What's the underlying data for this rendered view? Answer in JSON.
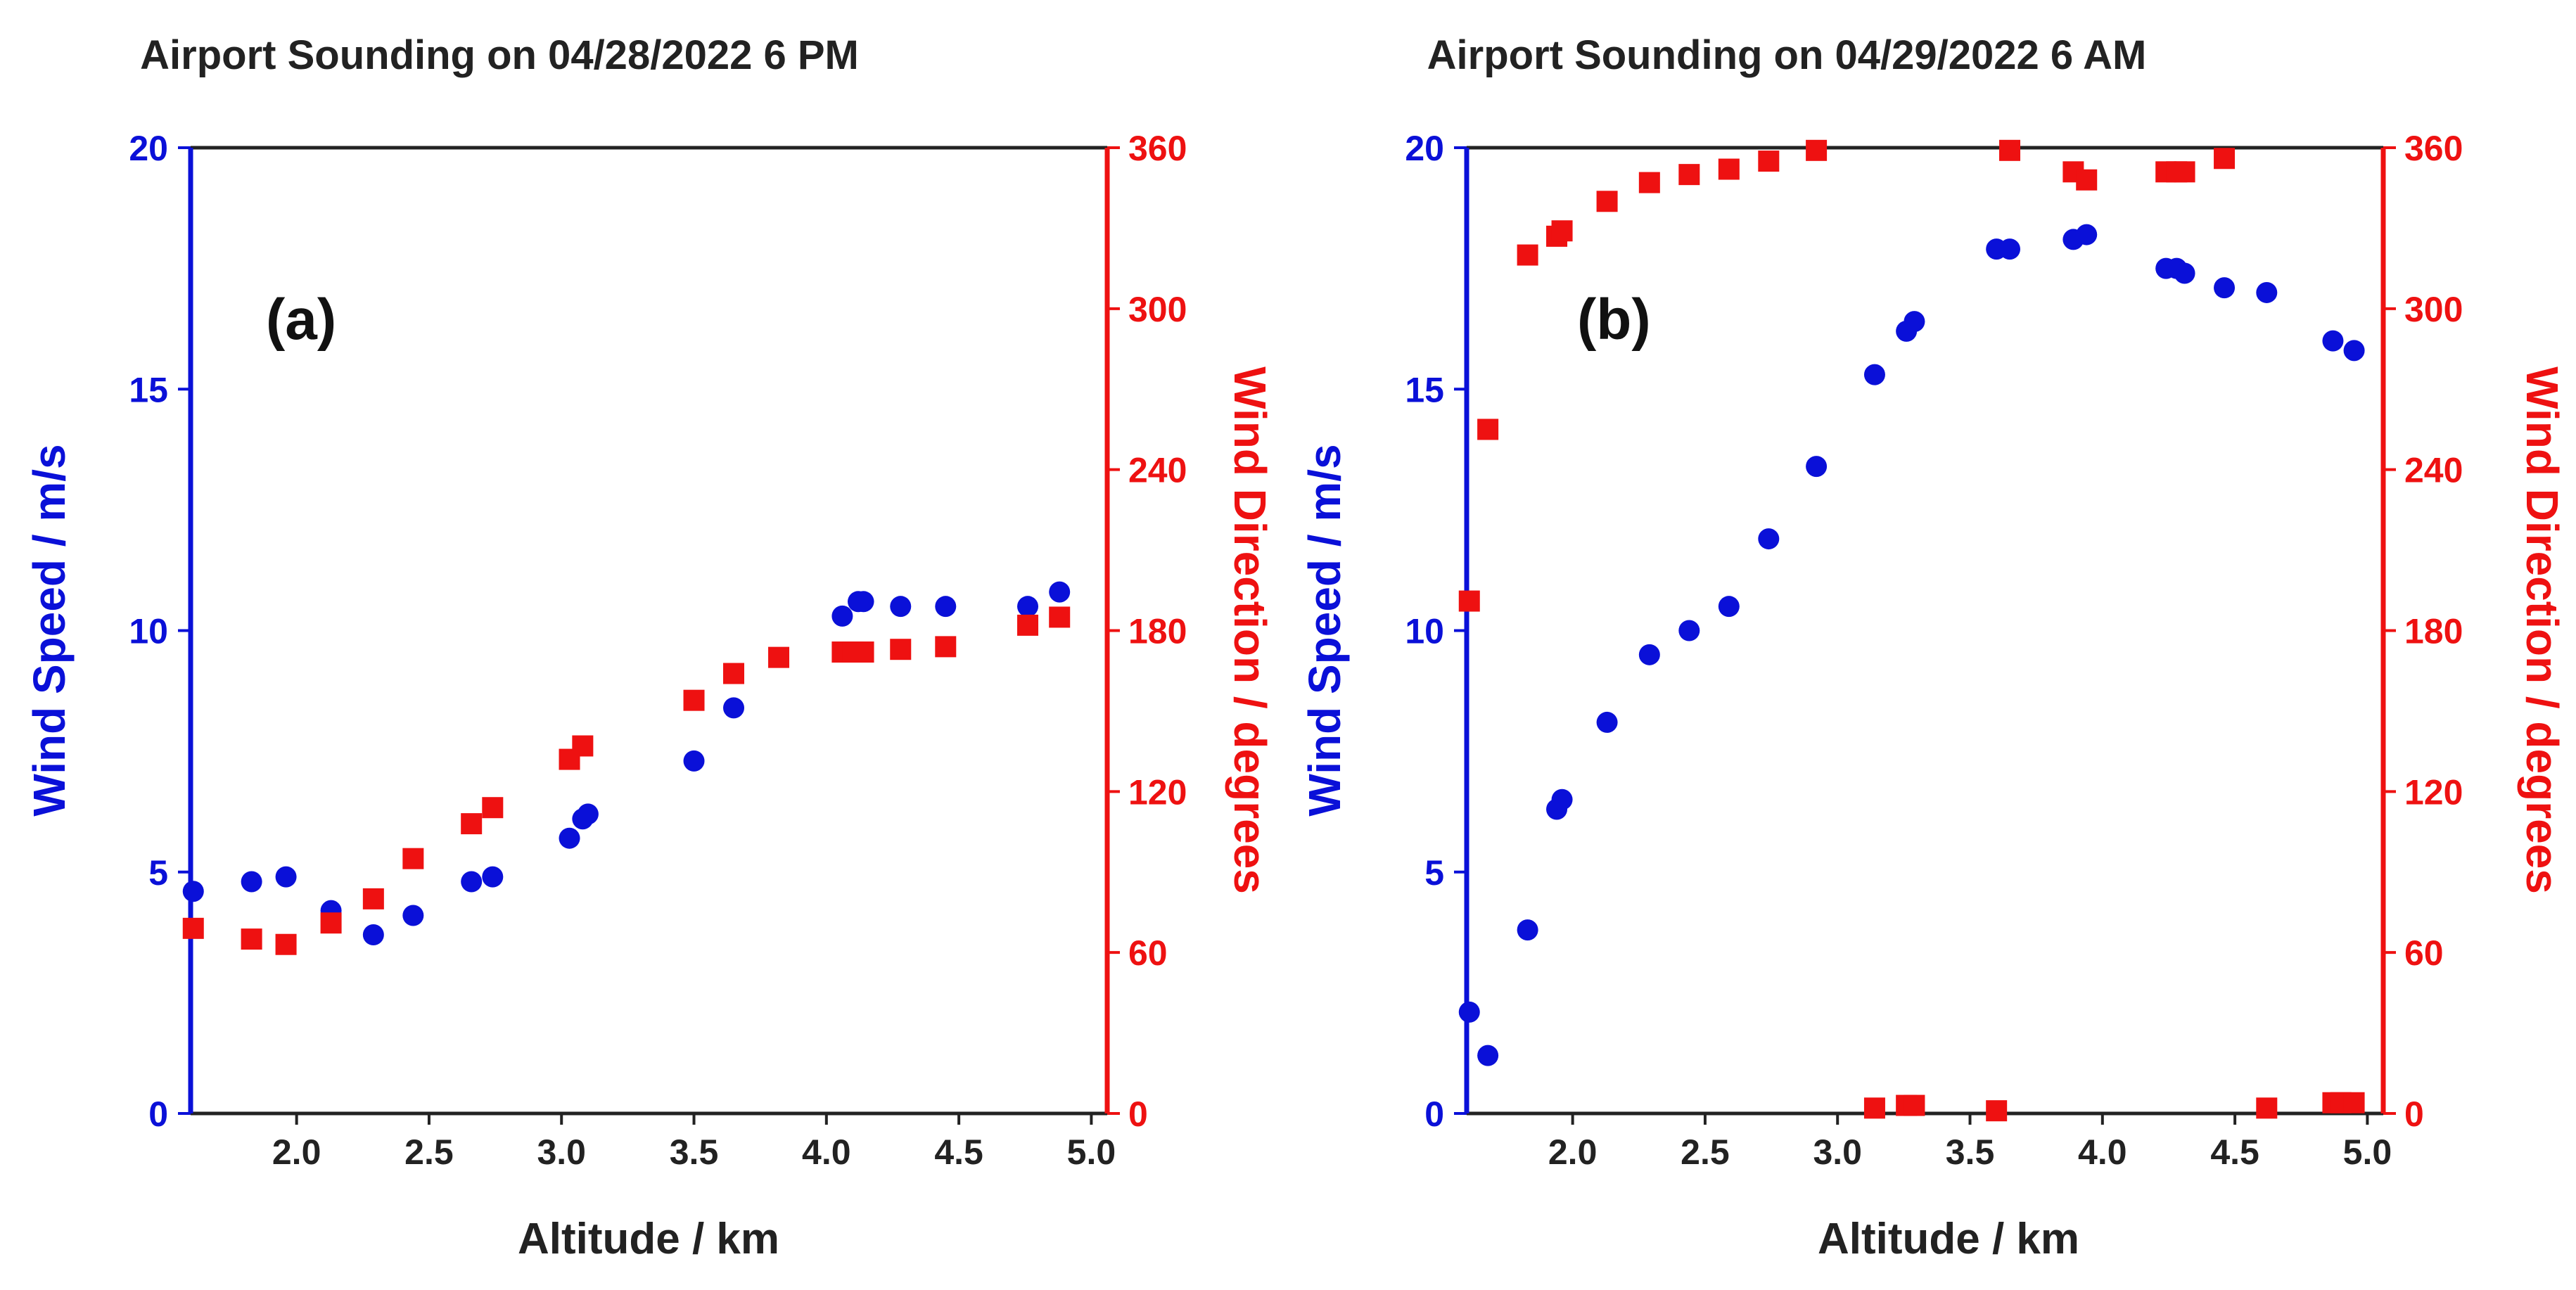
{
  "chart_data": [
    {
      "type": "scatter",
      "panel_label": "(a)",
      "title": "Airport Sounding on 04/28/2022  6 PM",
      "xlabel": "Altitude / km",
      "ylabel": "Wind Speed / m/s",
      "y2label": "Wind Direction / degrees",
      "xlim": [
        1.6,
        5.06
      ],
      "ylim": [
        0,
        20
      ],
      "y2lim": [
        0,
        360
      ],
      "x_ticks": [
        "2.0",
        "2.5",
        "3.0",
        "3.5",
        "4.0",
        "4.5",
        "5.0"
      ],
      "y_ticks": [
        "0",
        "5",
        "10",
        "15",
        "20"
      ],
      "y2_ticks": [
        "0",
        "60",
        "120",
        "180",
        "240",
        "300",
        "360"
      ],
      "colors": {
        "speed": "#0a10d8",
        "direction": "#ee1111",
        "axis": "#222222"
      },
      "series": [
        {
          "name": "Wind Speed",
          "axis": "left",
          "marker": "circle",
          "x": [
            1.61,
            1.83,
            1.96,
            2.13,
            2.29,
            2.44,
            2.66,
            2.74,
            3.03,
            3.08,
            3.1,
            3.5,
            3.65,
            4.06,
            4.12,
            4.14,
            4.28,
            4.45,
            4.76,
            4.88
          ],
          "y": [
            4.6,
            4.8,
            4.9,
            4.2,
            3.7,
            4.1,
            4.8,
            4.9,
            5.7,
            6.1,
            6.2,
            7.3,
            8.4,
            10.3,
            10.6,
            10.6,
            10.5,
            10.5,
            10.5,
            10.8
          ]
        },
        {
          "name": "Wind Direction",
          "axis": "right",
          "marker": "square",
          "x": [
            1.61,
            1.83,
            1.96,
            2.13,
            2.29,
            2.44,
            2.66,
            2.74,
            3.03,
            3.08,
            3.5,
            3.65,
            3.82,
            4.06,
            4.1,
            4.14,
            4.28,
            4.45,
            4.76,
            4.88
          ],
          "y": [
            69,
            65,
            63,
            71,
            80,
            95,
            108,
            114,
            132,
            137,
            154,
            164,
            170,
            172,
            172,
            172,
            173,
            174,
            182,
            185
          ]
        }
      ]
    },
    {
      "type": "scatter",
      "panel_label": "(b)",
      "title": "Airport Sounding on 04/29/2022  6 AM",
      "xlabel": "Altitude / km",
      "ylabel": "Wind Speed / m/s",
      "y2label": "Wind Direction / degrees",
      "xlim": [
        1.6,
        5.06
      ],
      "ylim": [
        0,
        20
      ],
      "y2lim": [
        0,
        360
      ],
      "x_ticks": [
        "2.0",
        "2.5",
        "3.0",
        "3.5",
        "4.0",
        "4.5",
        "5.0"
      ],
      "y_ticks": [
        "0",
        "5",
        "10",
        "15",
        "20"
      ],
      "y2_ticks": [
        "0",
        "60",
        "120",
        "180",
        "240",
        "300",
        "360"
      ],
      "colors": {
        "speed": "#0a10d8",
        "direction": "#ee1111",
        "axis": "#222222"
      },
      "series": [
        {
          "name": "Wind Speed",
          "axis": "left",
          "marker": "circle",
          "x": [
            1.61,
            1.68,
            1.83,
            1.94,
            1.96,
            2.13,
            2.29,
            2.44,
            2.59,
            2.74,
            2.92,
            3.14,
            3.26,
            3.29,
            3.6,
            3.65,
            3.89,
            3.94,
            4.24,
            4.28,
            4.31,
            4.46,
            4.62,
            4.87,
            4.95
          ],
          "y": [
            2.1,
            1.2,
            3.8,
            6.3,
            6.5,
            8.1,
            9.5,
            10.0,
            10.5,
            11.9,
            13.4,
            15.3,
            16.2,
            16.4,
            17.9,
            17.9,
            18.1,
            18.2,
            17.5,
            17.5,
            17.4,
            17.1,
            17.0,
            16.0,
            15.8
          ]
        },
        {
          "name": "Wind Direction",
          "axis": "right",
          "marker": "square",
          "x": [
            1.61,
            1.68,
            1.83,
            1.94,
            1.96,
            2.13,
            2.29,
            2.44,
            2.59,
            2.74,
            2.92,
            3.14,
            3.26,
            3.29,
            3.6,
            3.65,
            3.89,
            3.94,
            4.24,
            4.28,
            4.31,
            4.46,
            4.62,
            4.87,
            4.9,
            4.95
          ],
          "y": [
            191,
            255,
            320,
            327,
            329,
            340,
            347,
            350,
            352,
            355,
            359,
            2,
            3,
            3,
            1,
            359,
            351,
            348,
            351,
            351,
            351,
            356,
            2,
            4,
            4,
            4
          ]
        }
      ]
    }
  ]
}
